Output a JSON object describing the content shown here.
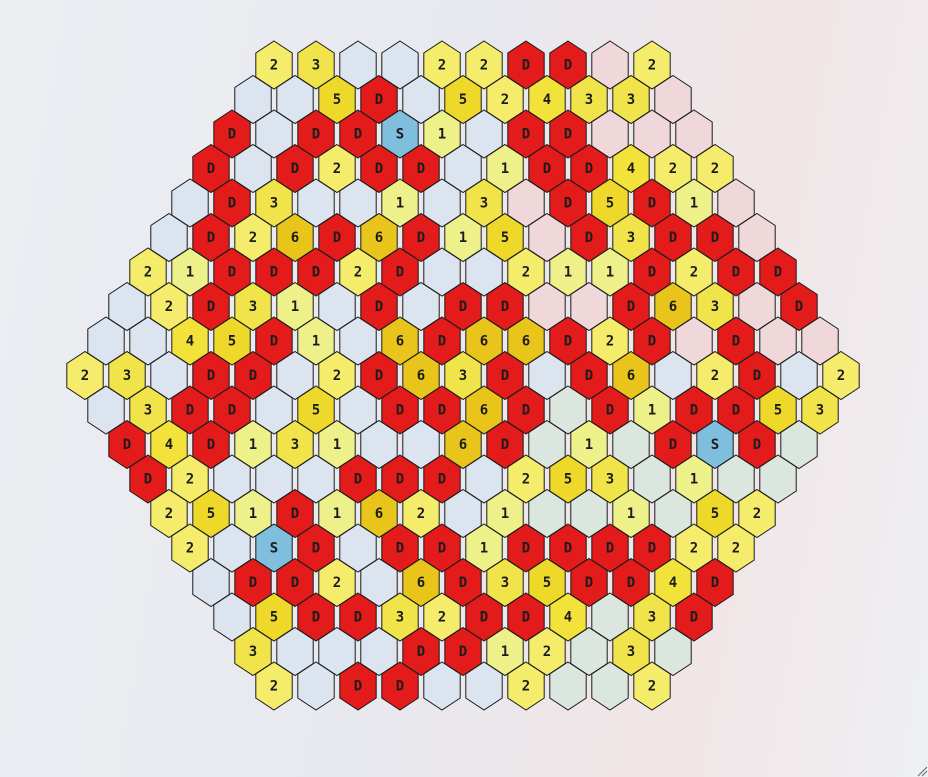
{
  "title": "",
  "board": {
    "shape": "hexagon",
    "columns": 19,
    "rows": 17,
    "legend": {
      "D": "danger",
      "S": "start",
      "": "empty",
      "1": "number",
      "2": "number",
      "3": "number",
      "4": "number",
      "5": "number",
      "6": "number"
    },
    "colors": {
      "danger": "#e41b1b",
      "start": "#7fbedc",
      "n1": "#eef08a",
      "n2": "#f4ec6a",
      "n3": "#f1e44a",
      "n4": "#f2e23a",
      "n5": "#eed82a",
      "n6": "#e9c41a",
      "empty_pink": "#f0d8da",
      "empty_blue": "#dbe4ef",
      "empty_green": "#dbe6de",
      "empty_white": "#f7f7fa",
      "outline": "#1b1b1b"
    },
    "cells": [
      {
        "c": 4,
        "r": 0,
        "v": "2"
      },
      {
        "c": 5,
        "r": 0,
        "v": "3"
      },
      {
        "c": 6,
        "r": 0,
        "v": "",
        "tint": "pink"
      },
      {
        "c": 7,
        "r": 0,
        "v": "",
        "tint": "pink"
      },
      {
        "c": 8,
        "r": 0,
        "v": "2"
      },
      {
        "c": 9,
        "r": 0,
        "v": "2"
      },
      {
        "c": 10,
        "r": 0,
        "v": "D"
      },
      {
        "c": 11,
        "r": 0,
        "v": "D"
      },
      {
        "c": 12,
        "r": 0,
        "v": "",
        "tint": "pink"
      },
      {
        "c": 13,
        "r": 0,
        "v": "2"
      },
      {
        "c": 3,
        "r": 0.5,
        "v": "",
        "tint": "blue"
      },
      {
        "c": 4,
        "r": 0.5,
        "v": "",
        "tint": "white"
      },
      {
        "c": 5,
        "r": 0.5,
        "v": "5"
      },
      {
        "c": 6,
        "r": 0.5,
        "v": "D"
      },
      {
        "c": 7,
        "r": 0.5,
        "v": "",
        "tint": "pink"
      },
      {
        "c": 8,
        "r": 0.5,
        "v": "5"
      },
      {
        "c": 9,
        "r": 0.5,
        "v": "2"
      },
      {
        "c": 10,
        "r": 0.5,
        "v": "4"
      },
      {
        "c": 11,
        "r": 0.5,
        "v": "3"
      },
      {
        "c": 12,
        "r": 0.5,
        "v": "3"
      },
      {
        "c": 13,
        "r": 0.5,
        "v": "",
        "tint": "pink"
      },
      {
        "c": 2,
        "r": 1,
        "v": "D"
      },
      {
        "c": 3,
        "r": 1,
        "v": "",
        "tint": "blue"
      },
      {
        "c": 4,
        "r": 1,
        "v": "D"
      },
      {
        "c": 5,
        "r": 1,
        "v": "D"
      },
      {
        "c": 6,
        "r": 1,
        "v": "S"
      },
      {
        "c": 7,
        "r": 1,
        "v": "1"
      },
      {
        "c": 8,
        "r": 1,
        "v": "",
        "tint": "pink"
      },
      {
        "c": 9,
        "r": 1,
        "v": "D"
      },
      {
        "c": 10,
        "r": 1,
        "v": "D"
      },
      {
        "c": 11,
        "r": 1,
        "v": "",
        "tint": "pink"
      },
      {
        "c": 12,
        "r": 1,
        "v": "",
        "tint": "pink"
      },
      {
        "c": 13,
        "r": 1,
        "v": "",
        "tint": "pink"
      },
      {
        "c": 1,
        "r": 1.5,
        "v": "D"
      },
      {
        "c": 2,
        "r": 1.5,
        "v": "",
        "tint": "blue"
      },
      {
        "c": 3,
        "r": 1.5,
        "v": "D"
      },
      {
        "c": 4,
        "r": 1.5,
        "v": "2"
      },
      {
        "c": 5,
        "r": 1.5,
        "v": "D"
      },
      {
        "c": 6,
        "r": 1.5,
        "v": "D"
      },
      {
        "c": 7,
        "r": 1.5,
        "v": "",
        "tint": "pink"
      },
      {
        "c": 8,
        "r": 1.5,
        "v": "1"
      },
      {
        "c": 9,
        "r": 1.5,
        "v": "D"
      },
      {
        "c": 10,
        "r": 1.5,
        "v": "D"
      },
      {
        "c": 11,
        "r": 1.5,
        "v": "4"
      },
      {
        "c": 12,
        "r": 1.5,
        "v": "2"
      },
      {
        "c": 13,
        "r": 1.5,
        "v": "2"
      },
      {
        "c": 0,
        "r": 2,
        "v": "",
        "tint": "blue"
      },
      {
        "c": 1,
        "r": 2,
        "v": "D"
      },
      {
        "c": 2,
        "r": 2,
        "v": "3"
      },
      {
        "c": 3,
        "r": 2,
        "v": "",
        "tint": "blue"
      },
      {
        "c": 4,
        "r": 2,
        "v": "",
        "tint": "white"
      },
      {
        "c": 5,
        "r": 2,
        "v": "1"
      },
      {
        "c": 6,
        "r": 2,
        "v": "",
        "tint": "pink"
      },
      {
        "c": 7,
        "r": 2,
        "v": "3"
      },
      {
        "c": 8,
        "r": 2,
        "v": "",
        "tint": "pink"
      },
      {
        "c": 9,
        "r": 2,
        "v": "D"
      },
      {
        "c": 10,
        "r": 2,
        "v": "5"
      },
      {
        "c": 11,
        "r": 2,
        "v": "D"
      },
      {
        "c": 12,
        "r": 2,
        "v": "1"
      },
      {
        "c": 13,
        "r": 2,
        "v": "",
        "tint": "pink"
      }
    ]
  },
  "rows_text": [
    "2 3 . . 2 2 D D . 2",
    ". . 5 D . 5 2 4 3 3 .",
    "D . D D S 1 . D D . . .",
    "D . D 2 D D . 1 D D 4 2 2",
    ". D 3 . . 1 . 3 . D 5 D 1 .",
    ". D 2 6 D 6 D 1 5 . D 3 D D .",
    "2 1 D D D 2 D . . 2 1 1 D 2 D D",
    ". 2 D 3 1 . D . D D . . D 6 3 . D",
    ". . 4 5 D 1 . 6 D 6 6 D 2 D . D . .",
    "2 3 . D D . 2 D 6 3 D . D 6 . 2 D . 2",
    ". 3 D D . 5 . D D 6 D . D 1 D D 5 3",
    "D 4 D 1 3 1 . . 6 D . 1 . D S D .",
    "D 2 . . . D D D . 2 5 3 . 1 . .",
    "2 5 1 D 1 6 2 . 1 . . 1 . 5 2",
    "2 . S D . D D 1 D D D D 2 2",
    ". D D 2 . 6 D 3 5 D D 4 D",
    ". 5 D D 3 2 D D 4 . 3 D",
    "3 . . . D D 1 2 . 3 .",
    "2 . D D . . 2 . . 2"
  ]
}
